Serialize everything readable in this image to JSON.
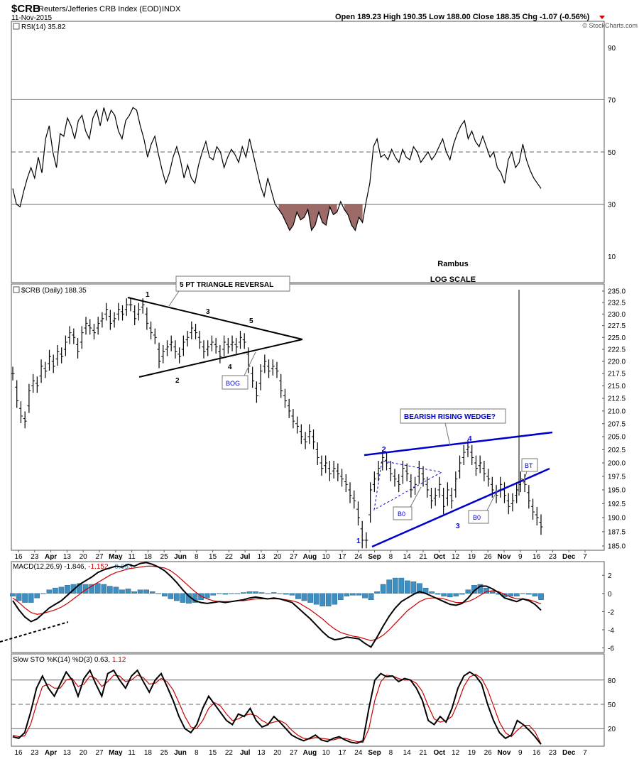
{
  "header": {
    "symbol": "$CRB",
    "name": "Reuters/Jefferies CRB Index (EOD)",
    "exchange": "INDX",
    "date": "11-Nov-2015",
    "ohlc": "Open 189.23  High 190.35  Low 188.00  Close 188.35  Chg -1.07 (-0.56%)",
    "watermark": "© StockCharts.com"
  },
  "colors": {
    "grid": "#cccccc",
    "axis": "#555555",
    "price_bar": "#000000",
    "rsi_line": "#000000",
    "rsi_oversold_fill": "#9c6b68",
    "macd_hist": "#3d8fc2",
    "macd_signal": "#cc0000",
    "annotation_blue": "#0000cc",
    "red_text": "#cc0000"
  },
  "chart_data": [
    {
      "type": "line",
      "panel": "rsi",
      "legend": "RSI(14) 35.82",
      "ylim": [
        0,
        100
      ],
      "y_ticks": [
        10,
        30,
        50,
        70,
        90
      ],
      "levels": [
        30,
        50,
        70
      ],
      "values": [
        36,
        30,
        29,
        35,
        40,
        44,
        40,
        48,
        42,
        55,
        60,
        50,
        44,
        57,
        56,
        63,
        60,
        55,
        62,
        64,
        58,
        55,
        63,
        66,
        60,
        67,
        62,
        66,
        64,
        58,
        55,
        62,
        64,
        67,
        66,
        60,
        55,
        48,
        53,
        56,
        49,
        43,
        38,
        42,
        48,
        52,
        47,
        40,
        45,
        40,
        38,
        45,
        50,
        54,
        48,
        47,
        52,
        50,
        44,
        48,
        51,
        49,
        46,
        52,
        48,
        55,
        49,
        43,
        37,
        33,
        40,
        35,
        30,
        28,
        26,
        23,
        20,
        22,
        27,
        24,
        25,
        28,
        20,
        22,
        27,
        23,
        22,
        29,
        26,
        27,
        31,
        28,
        26,
        22,
        20,
        25,
        23,
        31,
        38,
        52,
        55,
        48,
        49,
        47,
        51,
        48,
        46,
        51,
        48,
        47,
        52,
        50,
        46,
        48,
        50,
        47,
        49,
        52,
        55,
        50,
        47,
        53,
        57,
        60,
        62,
        55,
        58,
        54,
        52,
        56,
        52,
        48,
        50,
        44,
        42,
        38,
        47,
        50,
        44,
        46,
        53,
        47,
        43,
        40,
        38,
        36
      ]
    },
    {
      "type": "ohlc",
      "panel": "price",
      "legend": "$CRB (Daily) 188.35",
      "scale": "log",
      "y_ticks": [
        185.0,
        187.5,
        190.0,
        192.5,
        195.0,
        197.5,
        200.0,
        202.5,
        205.0,
        207.5,
        210.0,
        212.5,
        215.0,
        217.5,
        220.0,
        222.5,
        225.0,
        227.5,
        230.0,
        232.5,
        235.0
      ],
      "x_ticks": [
        "16",
        "23",
        "Apr",
        "13",
        "20",
        "27",
        "May",
        "11",
        "18",
        "25",
        "Jun",
        "8",
        "15",
        "22",
        "Jul",
        "13",
        "20",
        "27",
        "Aug",
        "10",
        "17",
        "24",
        "Sep",
        "8",
        "14",
        "21",
        "Oct",
        "12",
        "19",
        "26",
        "Nov",
        "9",
        "16",
        "23",
        "Dec",
        "7"
      ],
      "closes": [
        217.5,
        212,
        209,
        208,
        214,
        216,
        215,
        219,
        218,
        221,
        219,
        222,
        221,
        224,
        226,
        225,
        222,
        226,
        228,
        227,
        226,
        228,
        229,
        231,
        228,
        229,
        231,
        230,
        232,
        232,
        229,
        231,
        232,
        228,
        226,
        225,
        220,
        222,
        223,
        224,
        222,
        221,
        224,
        225,
        227,
        226,
        224,
        222,
        223,
        224,
        223,
        221,
        224,
        223,
        224,
        223,
        225,
        224,
        219,
        216,
        213,
        218,
        220,
        218,
        219,
        218,
        214,
        212,
        210,
        208,
        207,
        205,
        204,
        206,
        204,
        201,
        199,
        200,
        198,
        199,
        198,
        197,
        196,
        194,
        193,
        190,
        186,
        186,
        195,
        197,
        199,
        201,
        200,
        198,
        197,
        196,
        199,
        198,
        195,
        196,
        199,
        197,
        195,
        193,
        194,
        196,
        192,
        195,
        193,
        197,
        200,
        202,
        203,
        201,
        199,
        200,
        198,
        197,
        195,
        194,
        196,
        194,
        192,
        193,
        195,
        197,
        196,
        193,
        191,
        190,
        188.35
      ],
      "annotations": [
        "5 PT TRIANGLE REVERSAL",
        "1",
        "2",
        "3",
        "4",
        "5",
        "BOG",
        "BEARISH RISING WEDGE?",
        "1",
        "2",
        "3",
        "4",
        "B0",
        "B0",
        "BT",
        "Rambus",
        "LOG SCALE"
      ]
    },
    {
      "type": "line",
      "panel": "macd",
      "legend_prefix": "MACD(12,26,9) -1.846, ",
      "legend_signal": "-1.152",
      "legend_hist": "-0.693",
      "ylim": [
        -6.5,
        3.5
      ],
      "y_ticks": [
        -6,
        -4,
        -2,
        0,
        2
      ],
      "macd": [
        -0.8,
        -1.8,
        -2.6,
        -3.1,
        -2.8,
        -2.2,
        -1.6,
        -1.2,
        -0.8,
        -0.2,
        0.4,
        1.0,
        1.4,
        1.8,
        2.3,
        2.6,
        2.8,
        3.0,
        2.9,
        3.2,
        3.0,
        3.3,
        3.4,
        3.2,
        2.9,
        2.5,
        1.9,
        1.2,
        0.4,
        -0.3,
        -0.8,
        -1.0,
        -1.1,
        -1.0,
        -0.9,
        -1.0,
        -0.9,
        -0.8,
        -0.7,
        -0.5,
        -0.4,
        -0.5,
        -0.6,
        -0.5,
        -0.6,
        -0.8,
        -1.0,
        -1.6,
        -2.2,
        -2.8,
        -3.5,
        -4.2,
        -4.8,
        -5.1,
        -5.0,
        -4.8,
        -4.9,
        -5.0,
        -5.5,
        -5.9,
        -4.8,
        -3.6,
        -2.5,
        -1.6,
        -0.9,
        -0.5,
        -0.1,
        0.2,
        0.0,
        -0.3,
        -0.6,
        -0.9,
        -1.2,
        -1.3,
        -1.1,
        -0.5,
        0.3,
        0.8,
        0.8,
        0.5,
        0.1,
        -0.5,
        -0.7,
        -0.9,
        -0.6,
        -0.8,
        -1.2,
        -1.846
      ],
      "signal": [
        -0.5,
        -1.0,
        -1.6,
        -2.1,
        -2.3,
        -2.2,
        -2.0,
        -1.8,
        -1.5,
        -1.1,
        -0.6,
        -0.1,
        0.4,
        0.8,
        1.2,
        1.6,
        2.0,
        2.3,
        2.5,
        2.7,
        2.8,
        2.9,
        3.0,
        3.0,
        2.9,
        2.8,
        2.5,
        2.0,
        1.4,
        0.8,
        0.2,
        -0.3,
        -0.6,
        -0.8,
        -0.9,
        -0.9,
        -0.9,
        -0.8,
        -0.8,
        -0.7,
        -0.6,
        -0.6,
        -0.6,
        -0.6,
        -0.6,
        -0.7,
        -0.8,
        -1.0,
        -1.4,
        -1.8,
        -2.3,
        -2.8,
        -3.4,
        -3.9,
        -4.3,
        -4.5,
        -4.7,
        -4.8,
        -5.0,
        -5.2,
        -5.0,
        -4.6,
        -4.0,
        -3.3,
        -2.6,
        -1.9,
        -1.4,
        -0.9,
        -0.6,
        -0.5,
        -0.5,
        -0.6,
        -0.8,
        -1.0,
        -1.0,
        -0.9,
        -0.6,
        -0.2,
        0.2,
        0.3,
        0.2,
        -0.1,
        -0.4,
        -0.6,
        -0.6,
        -0.7,
        -0.9,
        -1.152
      ],
      "histogram": [
        -0.3,
        -0.8,
        -1.0,
        -1.0,
        -0.5,
        0.0,
        0.4,
        0.6,
        0.7,
        0.9,
        1.0,
        1.1,
        1.0,
        1.0,
        1.1,
        1.0,
        0.8,
        0.7,
        0.4,
        0.5,
        0.2,
        0.4,
        0.4,
        0.2,
        0.0,
        -0.3,
        -0.6,
        -0.8,
        -1.0,
        -1.1,
        -1.0,
        -0.7,
        -0.5,
        -0.2,
        0.0,
        -0.1,
        0.0,
        0.0,
        0.1,
        0.2,
        0.2,
        0.1,
        0.0,
        0.1,
        0.0,
        -0.1,
        -0.2,
        -0.6,
        -0.8,
        -1.0,
        -1.2,
        -1.4,
        -1.4,
        -1.2,
        -0.7,
        -0.3,
        -0.2,
        -0.2,
        -0.5,
        -0.7,
        0.2,
        1.0,
        1.5,
        1.7,
        1.7,
        1.4,
        1.3,
        1.1,
        0.6,
        0.2,
        -0.1,
        -0.3,
        -0.4,
        -0.3,
        -0.1,
        0.4,
        0.9,
        1.0,
        0.6,
        0.2,
        -0.1,
        -0.4,
        -0.3,
        -0.3,
        0.0,
        -0.1,
        -0.3,
        -0.693
      ]
    },
    {
      "type": "line",
      "panel": "stochastic",
      "legend_prefix": "Slow STO %K(14) %D(3) 0.63, ",
      "legend_d": "1.12",
      "ylim": [
        0,
        100
      ],
      "y_ticks": [
        20,
        50,
        80
      ],
      "levels": [
        20,
        50,
        80
      ],
      "k": [
        10,
        8,
        15,
        40,
        70,
        85,
        70,
        60,
        75,
        90,
        80,
        60,
        82,
        92,
        75,
        60,
        88,
        92,
        80,
        70,
        85,
        92,
        78,
        65,
        80,
        88,
        72,
        55,
        35,
        20,
        15,
        25,
        45,
        60,
        50,
        40,
        30,
        25,
        38,
        35,
        45,
        30,
        22,
        25,
        35,
        28,
        20,
        12,
        8,
        5,
        8,
        12,
        6,
        4,
        8,
        10,
        6,
        3,
        2,
        5,
        45,
        80,
        88,
        84,
        85,
        78,
        82,
        80,
        70,
        55,
        30,
        25,
        35,
        28,
        45,
        70,
        85,
        90,
        85,
        75,
        50,
        30,
        15,
        8,
        12,
        30,
        25,
        18,
        10,
        0.63
      ],
      "d": [
        12,
        10,
        11,
        25,
        50,
        72,
        75,
        70,
        70,
        80,
        82,
        72,
        75,
        85,
        82,
        72,
        78,
        86,
        85,
        78,
        80,
        86,
        83,
        75,
        76,
        82,
        78,
        68,
        52,
        35,
        22,
        20,
        30,
        45,
        52,
        48,
        38,
        30,
        32,
        36,
        38,
        36,
        30,
        26,
        28,
        30,
        26,
        18,
        12,
        8,
        7,
        9,
        8,
        7,
        6,
        8,
        8,
        6,
        4,
        3,
        20,
        55,
        78,
        86,
        85,
        82,
        80,
        80,
        76,
        66,
        48,
        32,
        28,
        30,
        35,
        52,
        72,
        84,
        87,
        82,
        68,
        48,
        28,
        15,
        10,
        18,
        24,
        24,
        16,
        1.12
      ]
    }
  ]
}
